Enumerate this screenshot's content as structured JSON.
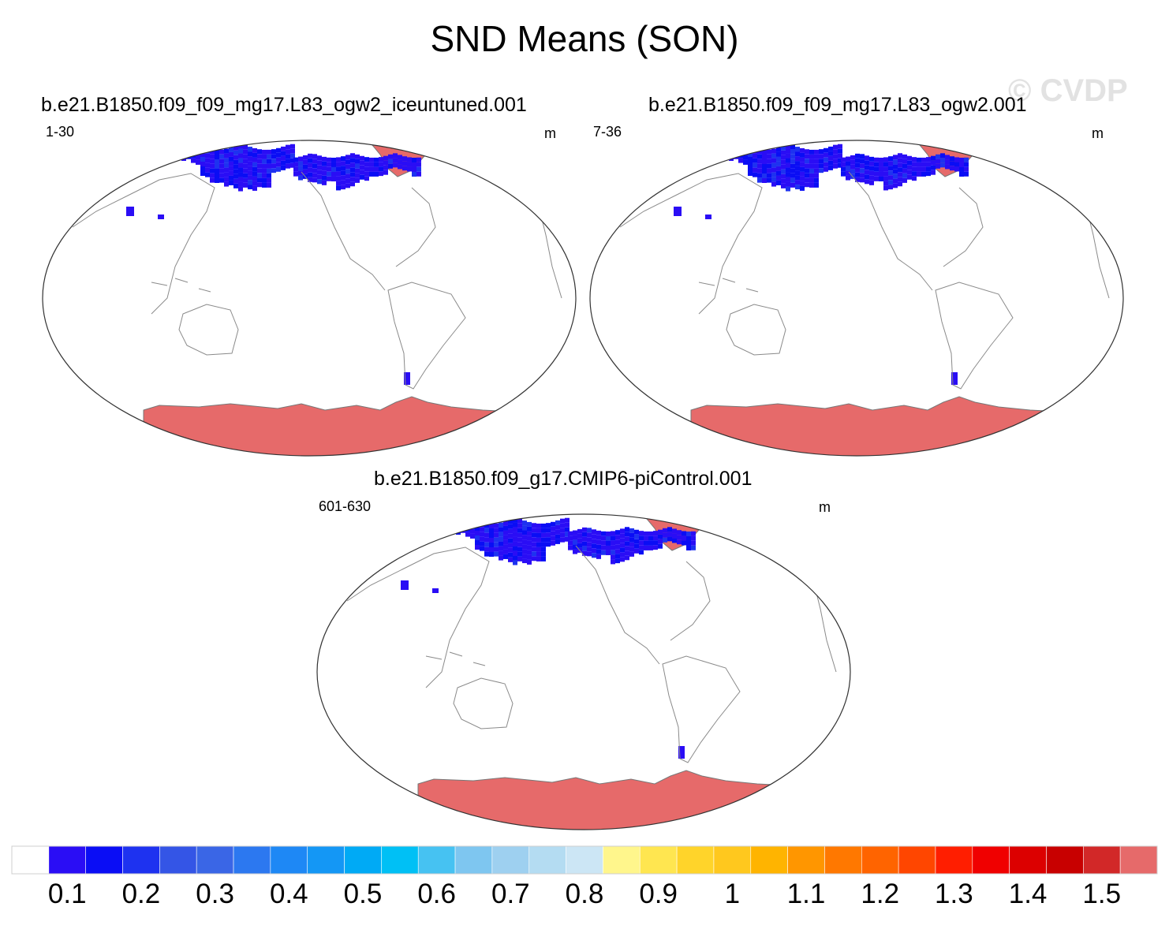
{
  "figure": {
    "title": "SND Means (SON)",
    "watermark": "© CVDP"
  },
  "panels": [
    {
      "run": "b.e21.B1850.f09_f09_mg17.L83_ogw2_iceuntuned.001",
      "years": "1-30",
      "units": "m"
    },
    {
      "run": "b.e21.B1850.f09_f09_mg17.L83_ogw2.001",
      "years": "7-36",
      "units": "m"
    },
    {
      "run": "b.e21.B1850.f09_g17.CMIP6-piControl.001",
      "years": "601-630",
      "units": "m"
    }
  ],
  "chart_data": {
    "type": "heatmap",
    "variable": "SND",
    "season": "SON",
    "units": "m",
    "projection": "Robinson, Pacific-centered",
    "colorbar": {
      "levels": [
        "0.1",
        "0.2",
        "0.3",
        "0.4",
        "0.5",
        "0.6",
        "0.7",
        "0.8",
        "0.9",
        "1",
        "1.1",
        "1.2",
        "1.3",
        "1.4",
        "1.5"
      ],
      "colors": [
        "#ffffff",
        "#2a0df5",
        "#0a0df5",
        "#1e32f0",
        "#3455e6",
        "#3a66e6",
        "#2c78f0",
        "#1e88f5",
        "#1497f5",
        "#00aaf5",
        "#00c0f5",
        "#46c2f2",
        "#7ec6f0",
        "#9ed0f0",
        "#b4dcf2",
        "#cce6f5",
        "#fff68c",
        "#ffe650",
        "#ffd42a",
        "#ffc81e",
        "#ffb400",
        "#ff9600",
        "#ff7800",
        "#ff6400",
        "#ff4600",
        "#ff1e00",
        "#f00000",
        "#dc0000",
        "#c80000",
        "#d22828",
        "#e66a6a"
      ]
    },
    "features": {
      "greenland_antarctica_bin": ">1.5",
      "eurasia_north_america_snow": "0-0.3"
    }
  }
}
